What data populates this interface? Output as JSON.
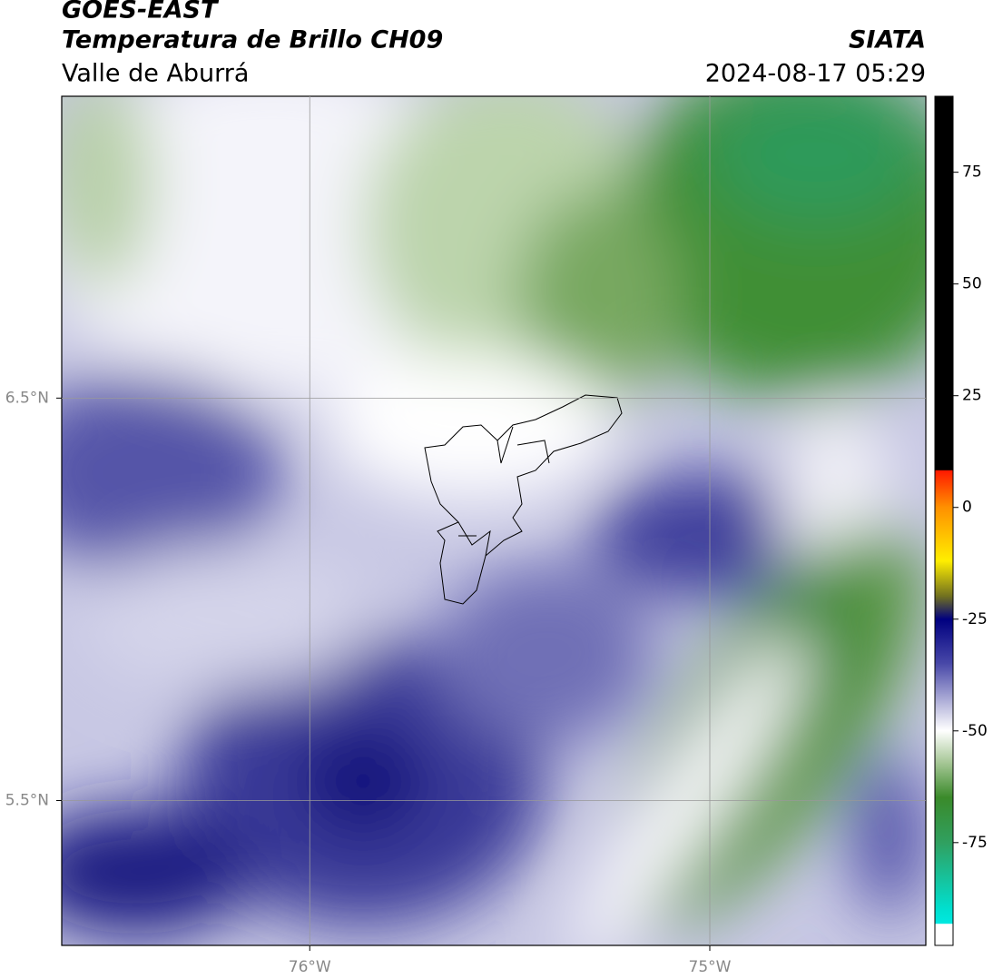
{
  "header": {
    "satellite": "GOES-EAST",
    "title": "Temperatura de Brillo CH09",
    "source": "SIATA",
    "region": "Valle de Aburrá",
    "datetime": "2024-08-17 05:29"
  },
  "map": {
    "lonlim": [
      -76.62,
      -74.46
    ],
    "latlim": [
      5.14,
      7.25
    ],
    "lonticks": [
      {
        "value": -76,
        "label": "76°W"
      },
      {
        "value": -75,
        "label": "75°W"
      }
    ],
    "latticks": [
      {
        "value": 6.5,
        "label": "6.5°N"
      },
      {
        "value": 5.5,
        "label": "5.5°N"
      }
    ],
    "grid": true
  },
  "colorbar": {
    "lim": [
      -98,
      92
    ],
    "ticks": [
      75,
      50,
      25,
      0,
      -25,
      -50,
      -75
    ]
  }
}
